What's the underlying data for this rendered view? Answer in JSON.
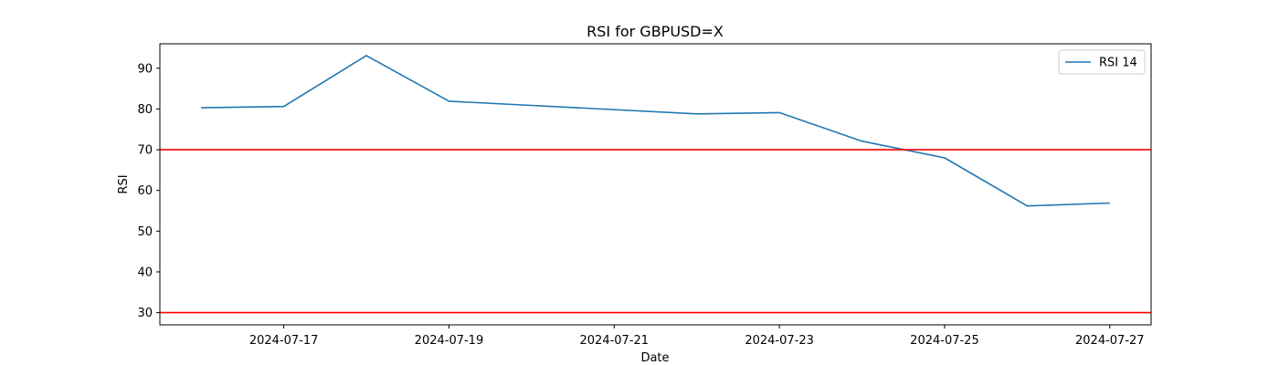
{
  "chart_data": {
    "type": "line",
    "title": "RSI for GBPUSD=X",
    "xlabel": "Date",
    "ylabel": "RSI",
    "x_ticks": [
      "2024-07-17",
      "2024-07-19",
      "2024-07-21",
      "2024-07-23",
      "2024-07-25",
      "2024-07-27"
    ],
    "y_ticks": [
      30,
      40,
      50,
      60,
      70,
      80,
      90
    ],
    "xlim": [
      "2024-07-15T12:00",
      "2024-07-27T12:00"
    ],
    "ylim": [
      27,
      96
    ],
    "grid": false,
    "legend_position": "top-right",
    "series": [
      {
        "name": "RSI 14",
        "color": "#1f77b4",
        "x": [
          "2024-07-16",
          "2024-07-17",
          "2024-07-18",
          "2024-07-19",
          "2024-07-22",
          "2024-07-23",
          "2024-07-24",
          "2024-07-25",
          "2024-07-26",
          "2024-07-27"
        ],
        "y": [
          80.3,
          80.6,
          93.1,
          81.9,
          78.8,
          79.1,
          72.1,
          68.0,
          56.2,
          56.9
        ]
      }
    ],
    "reference_lines": [
      {
        "y": 70,
        "color": "#ff0000"
      },
      {
        "y": 30,
        "color": "#ff0000"
      }
    ]
  }
}
